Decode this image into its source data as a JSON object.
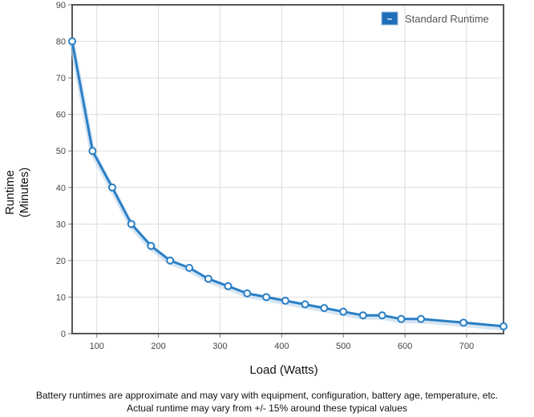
{
  "chart_data": {
    "type": "line",
    "xlabel": "Load (Watts)",
    "ylabel_lines": [
      "Runtime",
      "(Minutes)"
    ],
    "xlim": [
      60,
      760
    ],
    "ylim": [
      0,
      90
    ],
    "x_ticks": [
      100,
      200,
      300,
      400,
      500,
      600,
      700
    ],
    "y_ticks": [
      0,
      10,
      20,
      30,
      40,
      50,
      60,
      70,
      80,
      90
    ],
    "grid": true,
    "legend_position": "top-right",
    "legend_symbol": "–",
    "series": [
      {
        "name": "Standard Runtime",
        "color": "#2a7fc4",
        "x": [
          60,
          93,
          125,
          156,
          188,
          219,
          250,
          281,
          313,
          344,
          375,
          406,
          438,
          469,
          500,
          532,
          563,
          594,
          626,
          695,
          760
        ],
        "y": [
          80,
          50,
          40,
          30,
          24,
          20,
          18,
          15,
          13,
          11,
          10,
          9,
          8,
          7,
          6,
          5,
          5,
          4,
          4,
          3,
          2
        ]
      }
    ]
  },
  "footer": {
    "line1": "Battery runtimes are approximate and may vary with equipment, configuration, battery age, temperature, etc.",
    "line2": "Actual runtime may vary from +/- 15% around these typical values"
  }
}
